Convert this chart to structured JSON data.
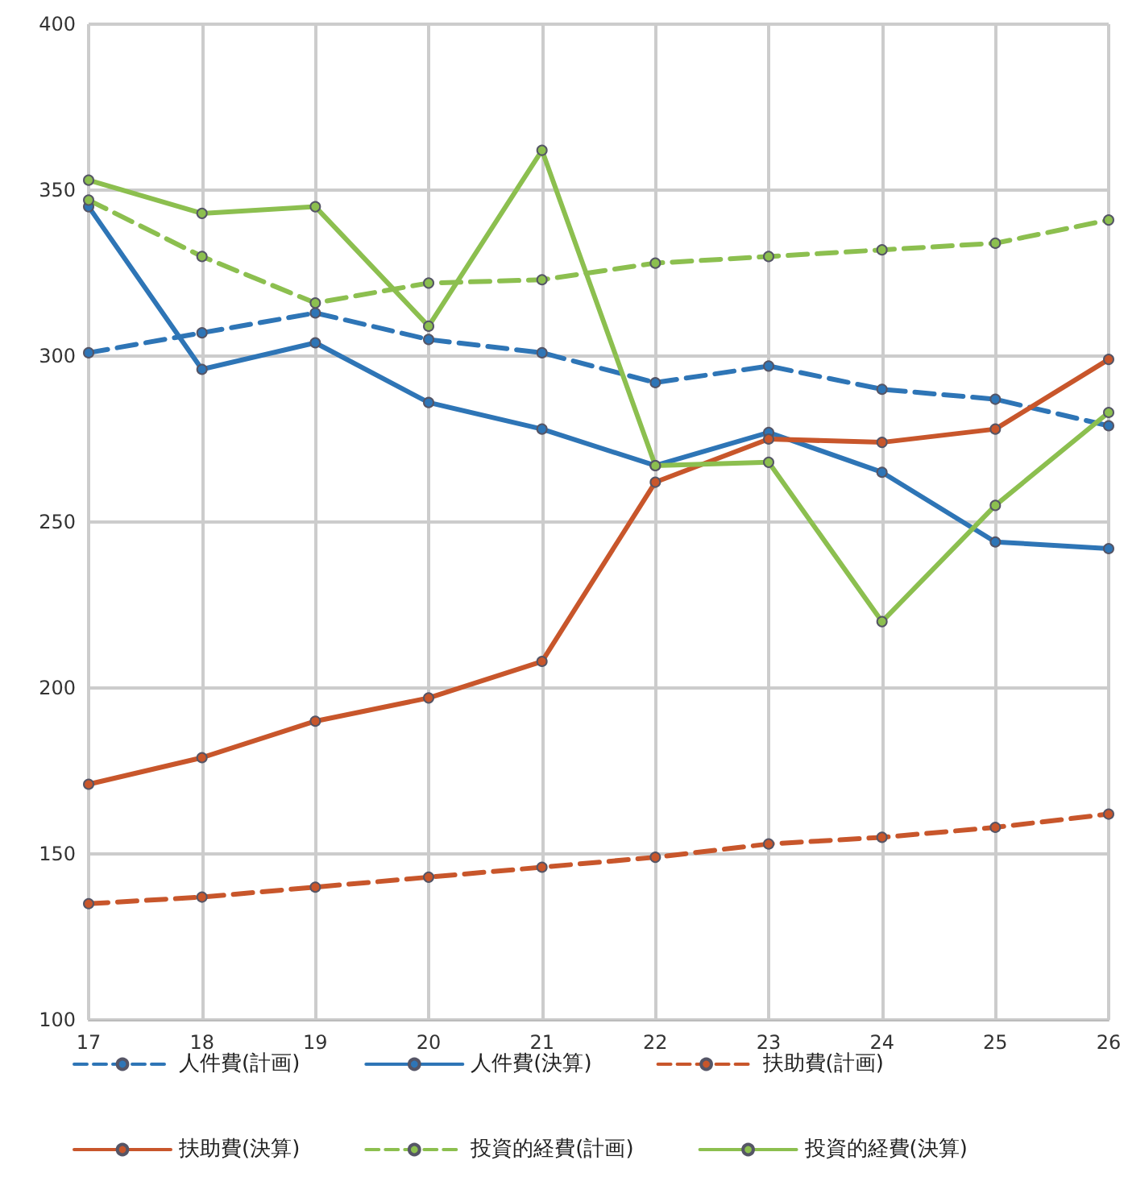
{
  "chart_data": {
    "type": "line",
    "categories": [
      "17",
      "18",
      "19",
      "20",
      "21",
      "22",
      "23",
      "24",
      "25",
      "26"
    ],
    "series": [
      {
        "name": "人件費(計画)",
        "color": "#2e75b6",
        "line_style": "dashed",
        "values": [
          301,
          307,
          313,
          305,
          301,
          292,
          297,
          290,
          287,
          279
        ]
      },
      {
        "name": "人件費(決算)",
        "color": "#2e75b6",
        "line_style": "solid",
        "values": [
          345,
          296,
          304,
          286,
          278,
          267,
          277,
          265,
          244,
          242
        ]
      },
      {
        "name": "扶助費(計画)",
        "color": "#c8562b",
        "line_style": "dashed",
        "values": [
          135,
          137,
          140,
          143,
          146,
          149,
          153,
          155,
          158,
          162
        ]
      },
      {
        "name": "扶助費(決算)",
        "color": "#c8562b",
        "line_style": "solid",
        "values": [
          171,
          179,
          190,
          197,
          208,
          262,
          275,
          274,
          278,
          299
        ]
      },
      {
        "name": "投資的経費(計画)",
        "color": "#8cbf4f",
        "line_style": "dashed",
        "values": [
          347,
          330,
          316,
          322,
          323,
          328,
          330,
          332,
          334,
          341
        ]
      },
      {
        "name": "投資的経費(決算)",
        "color": "#8cbf4f",
        "line_style": "solid",
        "values": [
          353,
          343,
          345,
          309,
          362,
          267,
          268,
          220,
          255,
          283
        ]
      }
    ],
    "ylim": [
      100,
      400
    ],
    "yticks": [
      100,
      150,
      200,
      250,
      300,
      350,
      400
    ],
    "grid": true,
    "legend": "bottom",
    "marker": "circle"
  }
}
